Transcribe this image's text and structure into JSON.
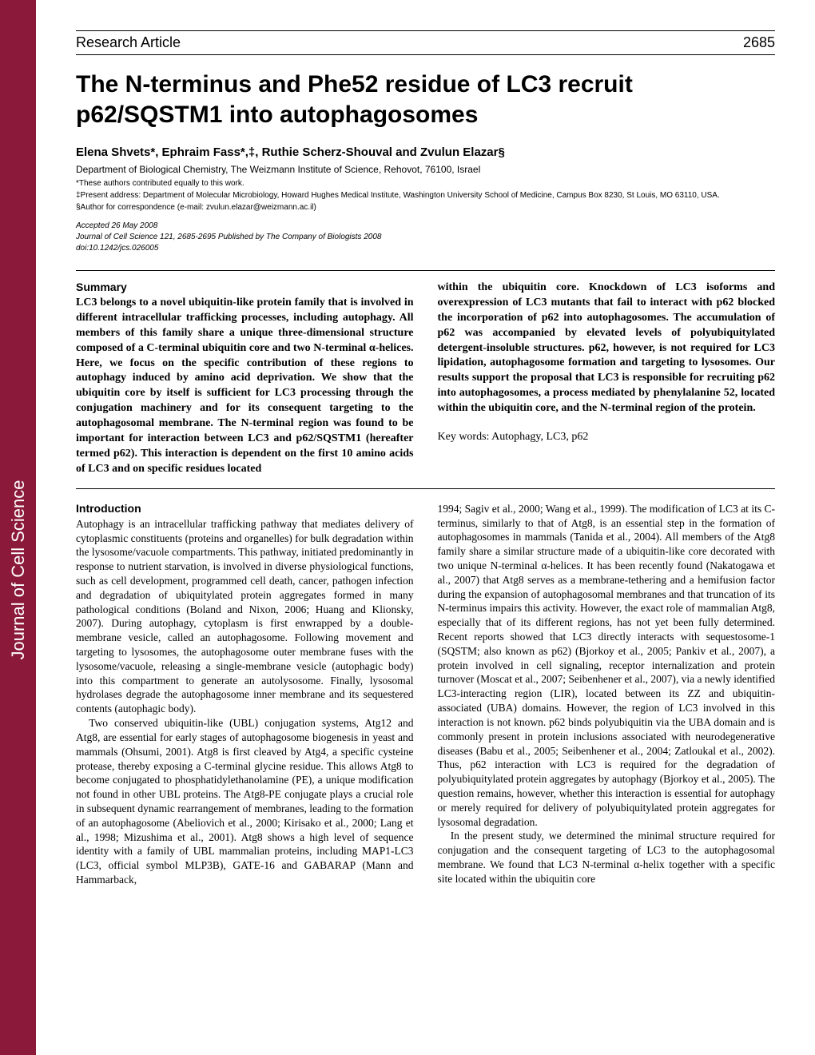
{
  "sidebar": {
    "label": "Journal of Cell Science"
  },
  "header": {
    "section": "Research Article",
    "page_number": "2685"
  },
  "title": "The N-terminus and Phe52 residue of LC3 recruit p62/SQSTM1 into autophagosomes",
  "authors": "Elena Shvets*, Ephraim Fass*,‡, Ruthie Scherz-Shouval and Zvulun Elazar§",
  "affiliation": "Department of Biological Chemistry, The Weizmann Institute of Science, Rehovot, 76100, Israel",
  "footnotes": {
    "equal": "*These authors contributed equally to this work.",
    "present": "‡Present address: Department of Molecular Microbiology, Howard Hughes Medical Institute, Washington University School of Medicine, Campus Box 8230, St Louis, MO 63110, USA.",
    "corr": "§Author for correspondence (e-mail: zvulun.elazar@weizmann.ac.il)"
  },
  "meta": {
    "accepted": "Accepted 26 May 2008",
    "citation": "Journal of Cell Science 121, 2685-2695 Published by The Company of Biologists 2008",
    "doi": "doi:10.1242/jcs.026005"
  },
  "summary": {
    "heading": "Summary",
    "left": "LC3 belongs to a novel ubiquitin-like protein family that is involved in different intracellular trafficking processes, including autophagy. All members of this family share a unique three-dimensional structure composed of a C-terminal ubiquitin core and two N-terminal α-helices. Here, we focus on the specific contribution of these regions to autophagy induced by amino acid deprivation. We show that the ubiquitin core by itself is sufficient for LC3 processing through the conjugation machinery and for its consequent targeting to the autophagosomal membrane. The N-terminal region was found to be important for interaction between LC3 and p62/SQSTM1 (hereafter termed p62). This interaction is dependent on the first 10 amino acids of LC3 and on specific residues located",
    "right": "within the ubiquitin core. Knockdown of LC3 isoforms and overexpression of LC3 mutants that fail to interact with p62 blocked the incorporation of p62 into autophagosomes. The accumulation of p62 was accompanied by elevated levels of polyubiquitylated detergent-insoluble structures. p62, however, is not required for LC3 lipidation, autophagosome formation and targeting to lysosomes. Our results support the proposal that LC3 is responsible for recruiting p62 into autophagosomes, a process mediated by phenylalanine 52, located within the ubiquitin core, and the N-terminal region of the protein.",
    "keywords": "Key words: Autophagy, LC3, p62"
  },
  "intro": {
    "heading": "Introduction",
    "left_p1": "Autophagy is an intracellular trafficking pathway that mediates delivery of cytoplasmic constituents (proteins and organelles) for bulk degradation within the lysosome/vacuole compartments. This pathway, initiated predominantly in response to nutrient starvation, is involved in diverse physiological functions, such as cell development, programmed cell death, cancer, pathogen infection and degradation of ubiquitylated protein aggregates formed in many pathological conditions (Boland and Nixon, 2006; Huang and Klionsky, 2007). During autophagy, cytoplasm is first enwrapped by a double-membrane vesicle, called an autophagosome. Following movement and targeting to lysosomes, the autophagosome outer membrane fuses with the lysosome/vacuole, releasing a single-membrane vesicle (autophagic body) into this compartment to generate an autolysosome. Finally, lysosomal hydrolases degrade the autophagosome inner membrane and its sequestered contents (autophagic body).",
    "left_p2": "Two conserved ubiquitin-like (UBL) conjugation systems, Atg12 and Atg8, are essential for early stages of autophagosome biogenesis in yeast and mammals (Ohsumi, 2001). Atg8 is first cleaved by Atg4, a specific cysteine protease, thereby exposing a C-terminal glycine residue. This allows Atg8 to become conjugated to phosphatidylethanolamine (PE), a unique modification not found in other UBL proteins. The Atg8-PE conjugate plays a crucial role in subsequent dynamic rearrangement of membranes, leading to the formation of an autophagosome (Abeliovich et al., 2000; Kirisako et al., 2000; Lang et al., 1998; Mizushima et al., 2001). Atg8 shows a high level of sequence identity with a family of UBL mammalian proteins, including MAP1-LC3 (LC3, official symbol MLP3B), GATE-16 and GABARAP (Mann and Hammarback,",
    "right_p1": "1994; Sagiv et al., 2000; Wang et al., 1999). The modification of LC3 at its C-terminus, similarly to that of Atg8, is an essential step in the formation of autophagosomes in mammals (Tanida et al., 2004). All members of the Atg8 family share a similar structure made of a ubiquitin-like core decorated with two unique N-terminal α-helices. It has been recently found (Nakatogawa et al., 2007) that Atg8 serves as a membrane-tethering and a hemifusion factor during the expansion of autophagosomal membranes and that truncation of its N-terminus impairs this activity. However, the exact role of mammalian Atg8, especially that of its different regions, has not yet been fully determined. Recent reports showed that LC3 directly interacts with sequestosome-1 (SQSTM; also known as p62) (Bjorkoy et al., 2005; Pankiv et al., 2007), a protein involved in cell signaling, receptor internalization and protein turnover (Moscat et al., 2007; Seibenhener et al., 2007), via a newly identified LC3-interacting region (LIR), located between its ZZ and ubiquitin-associated (UBA) domains. However, the region of LC3 involved in this interaction is not known. p62 binds polyubiquitin via the UBA domain and is commonly present in protein inclusions associated with neurodegenerative diseases (Babu et al., 2005; Seibenhener et al., 2004; Zatloukal et al., 2002). Thus, p62 interaction with LC3 is required for the degradation of polyubiquitylated protein aggregates by autophagy (Bjorkoy et al., 2005). The question remains, however, whether this interaction is essential for autophagy or merely required for delivery of polyubiquitylated protein aggregates for lysosomal degradation.",
    "right_p2": "In the present study, we determined the minimal structure required for conjugation and the consequent targeting of LC3 to the autophagosomal membrane. We found that LC3 N-terminal α-helix together with a specific site located within the ubiquitin core"
  }
}
